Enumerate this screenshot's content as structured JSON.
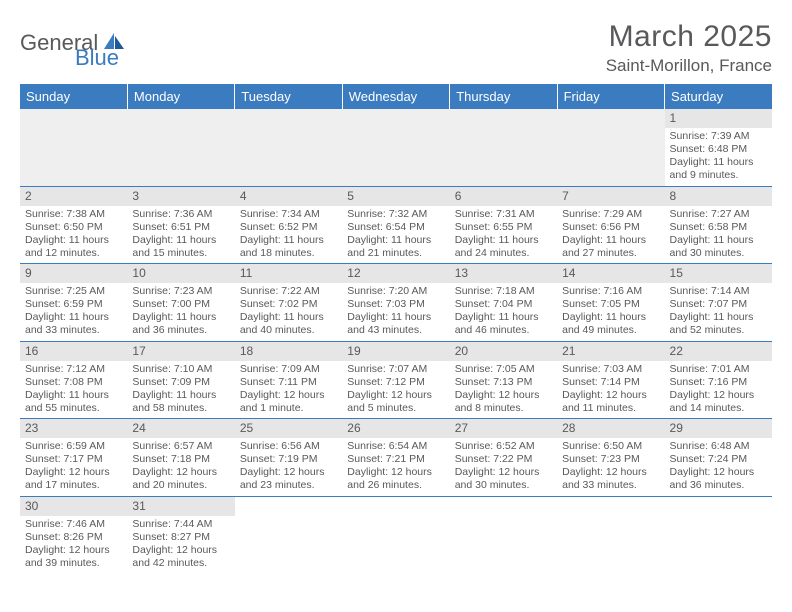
{
  "brand": {
    "part1": "General",
    "part2": "Blue"
  },
  "title": "March 2025",
  "location": "Saint-Morillon, France",
  "colors": {
    "accent": "#3b7bbf",
    "text": "#58595b",
    "band": "#e6e6e6",
    "blank": "#efefef"
  },
  "weekdays": [
    "Sunday",
    "Monday",
    "Tuesday",
    "Wednesday",
    "Thursday",
    "Friday",
    "Saturday"
  ],
  "weeks": [
    [
      null,
      null,
      null,
      null,
      null,
      null,
      {
        "n": "1",
        "sr": "Sunrise: 7:39 AM",
        "ss": "Sunset: 6:48 PM",
        "d1": "Daylight: 11 hours",
        "d2": "and 9 minutes."
      }
    ],
    [
      {
        "n": "2",
        "sr": "Sunrise: 7:38 AM",
        "ss": "Sunset: 6:50 PM",
        "d1": "Daylight: 11 hours",
        "d2": "and 12 minutes."
      },
      {
        "n": "3",
        "sr": "Sunrise: 7:36 AM",
        "ss": "Sunset: 6:51 PM",
        "d1": "Daylight: 11 hours",
        "d2": "and 15 minutes."
      },
      {
        "n": "4",
        "sr": "Sunrise: 7:34 AM",
        "ss": "Sunset: 6:52 PM",
        "d1": "Daylight: 11 hours",
        "d2": "and 18 minutes."
      },
      {
        "n": "5",
        "sr": "Sunrise: 7:32 AM",
        "ss": "Sunset: 6:54 PM",
        "d1": "Daylight: 11 hours",
        "d2": "and 21 minutes."
      },
      {
        "n": "6",
        "sr": "Sunrise: 7:31 AM",
        "ss": "Sunset: 6:55 PM",
        "d1": "Daylight: 11 hours",
        "d2": "and 24 minutes."
      },
      {
        "n": "7",
        "sr": "Sunrise: 7:29 AM",
        "ss": "Sunset: 6:56 PM",
        "d1": "Daylight: 11 hours",
        "d2": "and 27 minutes."
      },
      {
        "n": "8",
        "sr": "Sunrise: 7:27 AM",
        "ss": "Sunset: 6:58 PM",
        "d1": "Daylight: 11 hours",
        "d2": "and 30 minutes."
      }
    ],
    [
      {
        "n": "9",
        "sr": "Sunrise: 7:25 AM",
        "ss": "Sunset: 6:59 PM",
        "d1": "Daylight: 11 hours",
        "d2": "and 33 minutes."
      },
      {
        "n": "10",
        "sr": "Sunrise: 7:23 AM",
        "ss": "Sunset: 7:00 PM",
        "d1": "Daylight: 11 hours",
        "d2": "and 36 minutes."
      },
      {
        "n": "11",
        "sr": "Sunrise: 7:22 AM",
        "ss": "Sunset: 7:02 PM",
        "d1": "Daylight: 11 hours",
        "d2": "and 40 minutes."
      },
      {
        "n": "12",
        "sr": "Sunrise: 7:20 AM",
        "ss": "Sunset: 7:03 PM",
        "d1": "Daylight: 11 hours",
        "d2": "and 43 minutes."
      },
      {
        "n": "13",
        "sr": "Sunrise: 7:18 AM",
        "ss": "Sunset: 7:04 PM",
        "d1": "Daylight: 11 hours",
        "d2": "and 46 minutes."
      },
      {
        "n": "14",
        "sr": "Sunrise: 7:16 AM",
        "ss": "Sunset: 7:05 PM",
        "d1": "Daylight: 11 hours",
        "d2": "and 49 minutes."
      },
      {
        "n": "15",
        "sr": "Sunrise: 7:14 AM",
        "ss": "Sunset: 7:07 PM",
        "d1": "Daylight: 11 hours",
        "d2": "and 52 minutes."
      }
    ],
    [
      {
        "n": "16",
        "sr": "Sunrise: 7:12 AM",
        "ss": "Sunset: 7:08 PM",
        "d1": "Daylight: 11 hours",
        "d2": "and 55 minutes."
      },
      {
        "n": "17",
        "sr": "Sunrise: 7:10 AM",
        "ss": "Sunset: 7:09 PM",
        "d1": "Daylight: 11 hours",
        "d2": "and 58 minutes."
      },
      {
        "n": "18",
        "sr": "Sunrise: 7:09 AM",
        "ss": "Sunset: 7:11 PM",
        "d1": "Daylight: 12 hours",
        "d2": "and 1 minute."
      },
      {
        "n": "19",
        "sr": "Sunrise: 7:07 AM",
        "ss": "Sunset: 7:12 PM",
        "d1": "Daylight: 12 hours",
        "d2": "and 5 minutes."
      },
      {
        "n": "20",
        "sr": "Sunrise: 7:05 AM",
        "ss": "Sunset: 7:13 PM",
        "d1": "Daylight: 12 hours",
        "d2": "and 8 minutes."
      },
      {
        "n": "21",
        "sr": "Sunrise: 7:03 AM",
        "ss": "Sunset: 7:14 PM",
        "d1": "Daylight: 12 hours",
        "d2": "and 11 minutes."
      },
      {
        "n": "22",
        "sr": "Sunrise: 7:01 AM",
        "ss": "Sunset: 7:16 PM",
        "d1": "Daylight: 12 hours",
        "d2": "and 14 minutes."
      }
    ],
    [
      {
        "n": "23",
        "sr": "Sunrise: 6:59 AM",
        "ss": "Sunset: 7:17 PM",
        "d1": "Daylight: 12 hours",
        "d2": "and 17 minutes."
      },
      {
        "n": "24",
        "sr": "Sunrise: 6:57 AM",
        "ss": "Sunset: 7:18 PM",
        "d1": "Daylight: 12 hours",
        "d2": "and 20 minutes."
      },
      {
        "n": "25",
        "sr": "Sunrise: 6:56 AM",
        "ss": "Sunset: 7:19 PM",
        "d1": "Daylight: 12 hours",
        "d2": "and 23 minutes."
      },
      {
        "n": "26",
        "sr": "Sunrise: 6:54 AM",
        "ss": "Sunset: 7:21 PM",
        "d1": "Daylight: 12 hours",
        "d2": "and 26 minutes."
      },
      {
        "n": "27",
        "sr": "Sunrise: 6:52 AM",
        "ss": "Sunset: 7:22 PM",
        "d1": "Daylight: 12 hours",
        "d2": "and 30 minutes."
      },
      {
        "n": "28",
        "sr": "Sunrise: 6:50 AM",
        "ss": "Sunset: 7:23 PM",
        "d1": "Daylight: 12 hours",
        "d2": "and 33 minutes."
      },
      {
        "n": "29",
        "sr": "Sunrise: 6:48 AM",
        "ss": "Sunset: 7:24 PM",
        "d1": "Daylight: 12 hours",
        "d2": "and 36 minutes."
      }
    ],
    [
      {
        "n": "30",
        "sr": "Sunrise: 7:46 AM",
        "ss": "Sunset: 8:26 PM",
        "d1": "Daylight: 12 hours",
        "d2": "and 39 minutes."
      },
      {
        "n": "31",
        "sr": "Sunrise: 7:44 AM",
        "ss": "Sunset: 8:27 PM",
        "d1": "Daylight: 12 hours",
        "d2": "and 42 minutes."
      },
      null,
      null,
      null,
      null,
      null
    ]
  ]
}
